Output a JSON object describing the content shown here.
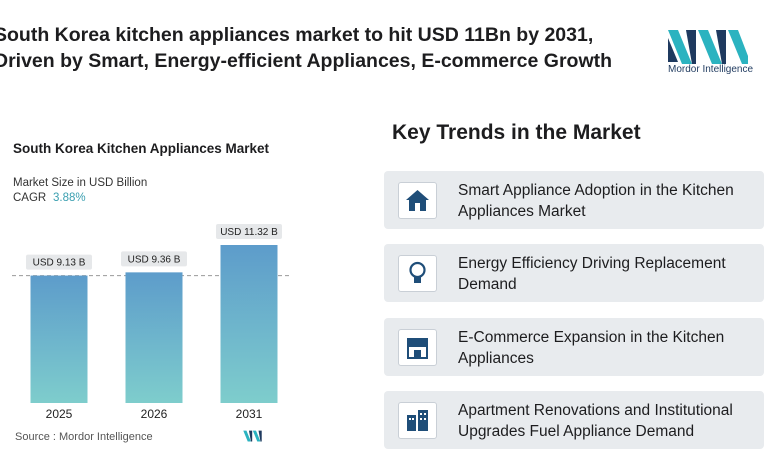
{
  "header": {
    "title_lines": [
      "South Korea kitchen appliances market to hit USD 11Bn by 2031,",
      "Driven by Smart, Energy-efficient Appliances, E-commerce Growth"
    ],
    "logo": "Mordor Intelligence"
  },
  "chart_data": {
    "type": "bar",
    "title": "South Korea Kitchen Appliances Market",
    "subtitle": "Market Size in USD Billion",
    "cagr_label": "CAGR",
    "cagr": "3.88%",
    "categories": [
      "2025",
      "2026",
      "2031"
    ],
    "values": [
      9.13,
      9.36,
      11.32
    ],
    "value_labels": [
      "USD 9.13 B",
      "USD 9.36 B",
      "USD 11.32 B"
    ],
    "color": "#6fb3c9"
  },
  "trends": {
    "title": "Key Trends in the Market",
    "items": [
      "Smart Appliance Adoption in the Kitchen Appliances Market",
      "Energy Efficiency Driving Replacement Demand",
      "E-Commerce Expansion in the Kitchen Appliances",
      "Apartment Renovations and Institutional Upgrades Fuel Appliance Demand"
    ]
  },
  "source": "Source :  Mordor Intelligence"
}
